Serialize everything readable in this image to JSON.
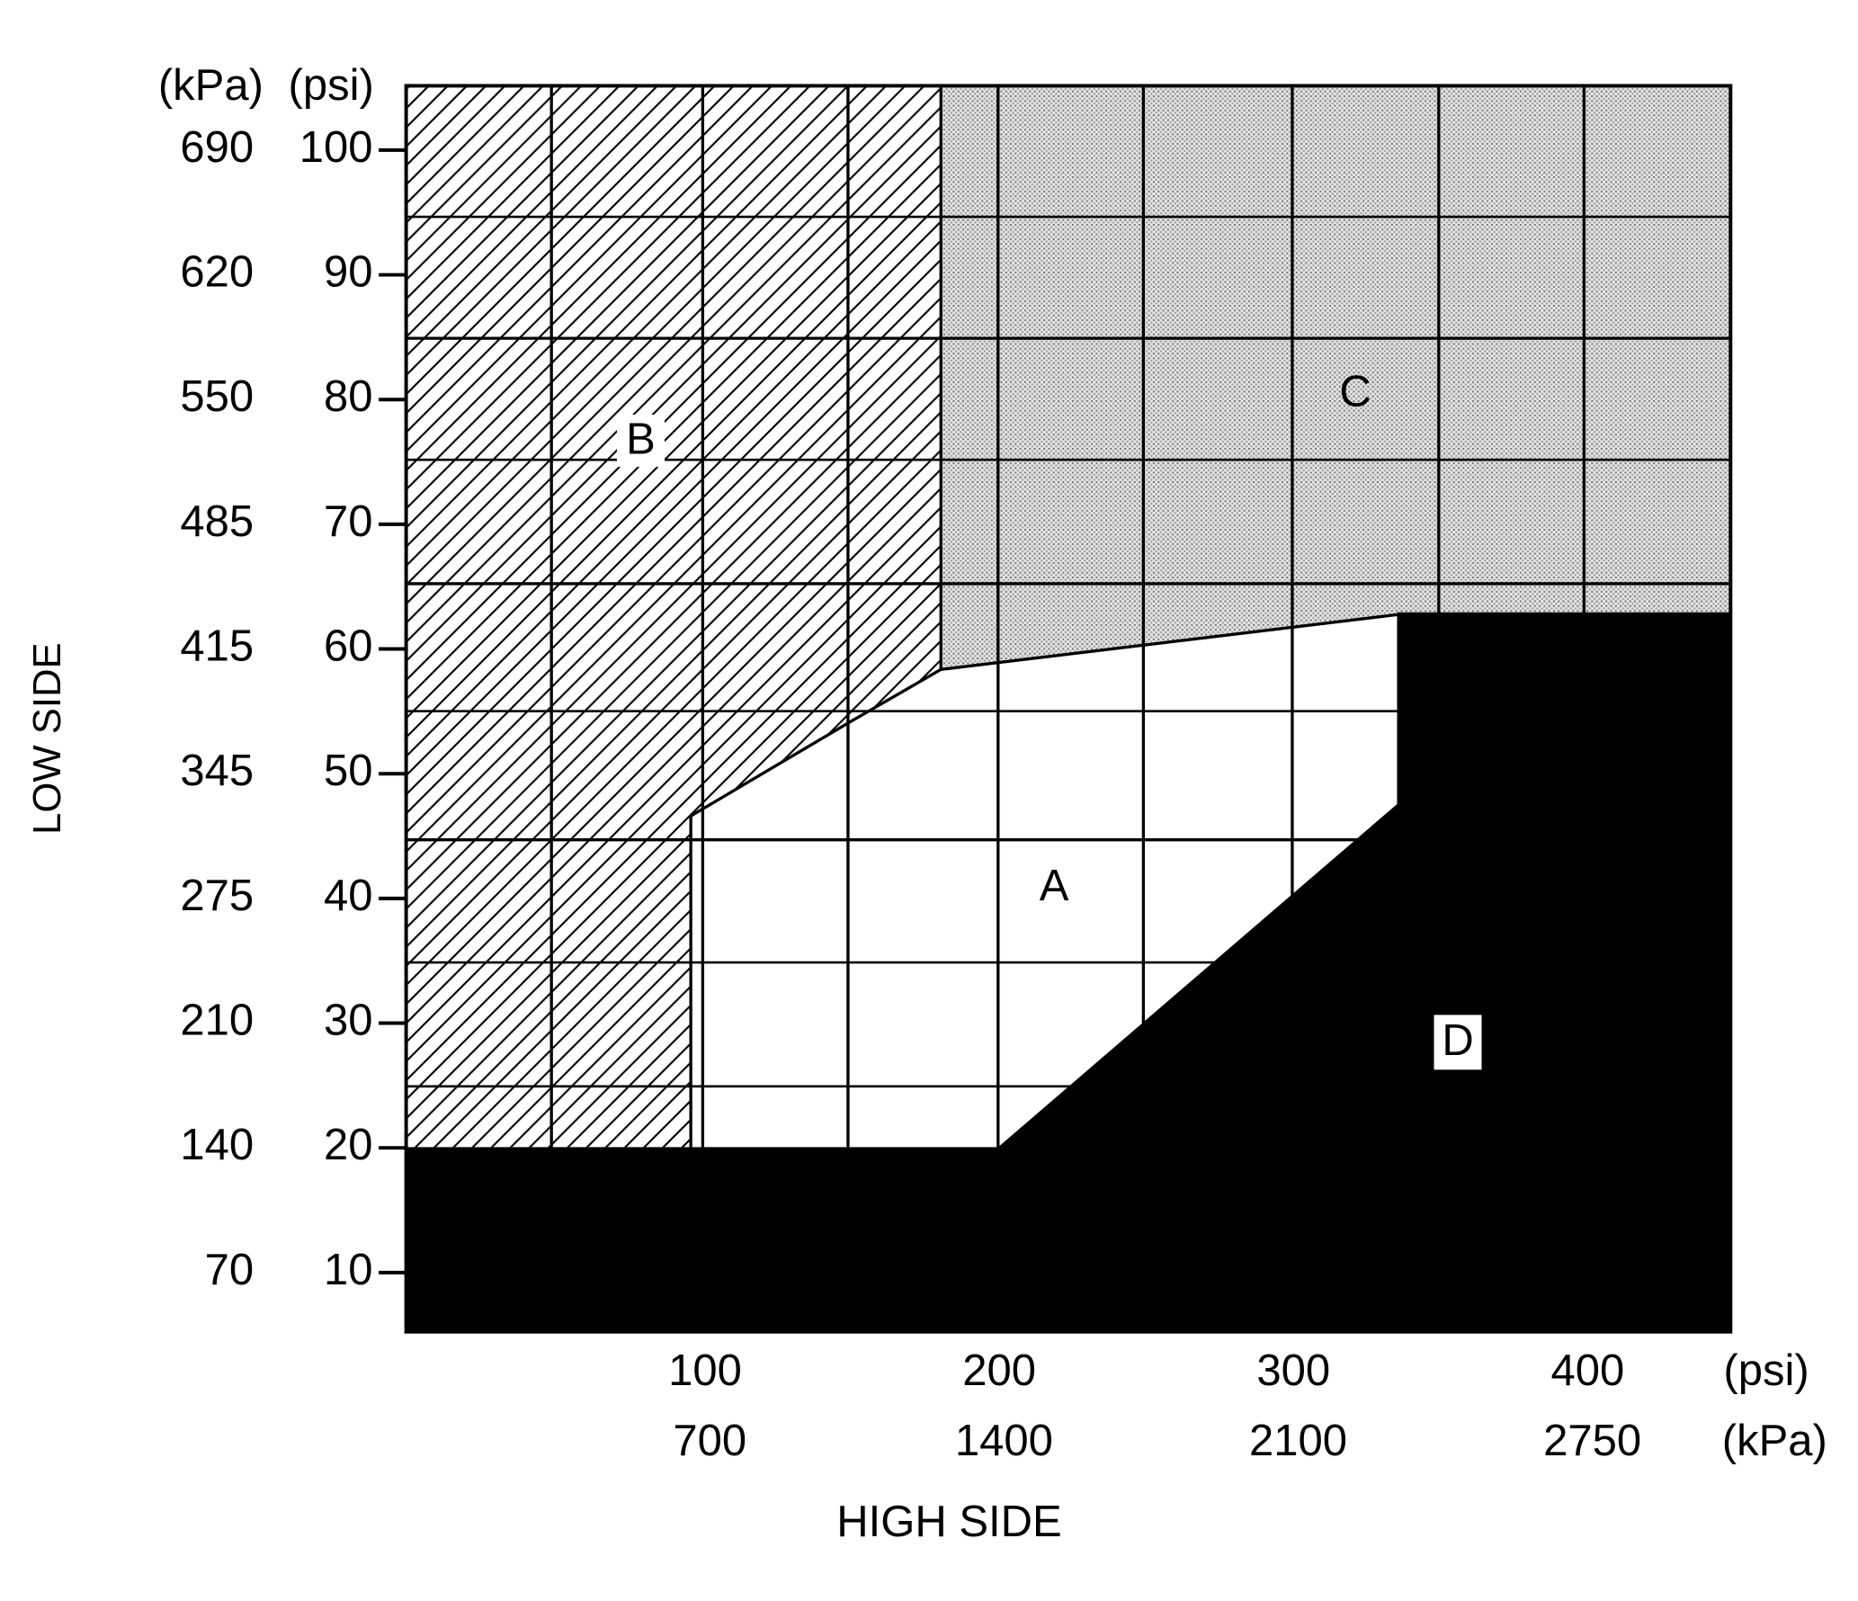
{
  "y_axis": {
    "title": "LOW SIDE",
    "units": [
      "(kPa)",
      "(psi)"
    ],
    "kpa": [
      "690",
      "620",
      "550",
      "485",
      "415",
      "345",
      "275",
      "210",
      "140",
      "70"
    ],
    "psi": [
      "100",
      "90",
      "80",
      "70",
      "60",
      "50",
      "40",
      "30",
      "20",
      "10"
    ]
  },
  "x_axis": {
    "title": "HIGH SIDE",
    "units": [
      "(psi)",
      "(kPa)"
    ],
    "psi": [
      "100",
      "200",
      "300",
      "400"
    ],
    "kpa": [
      "700",
      "1400",
      "2100",
      "2750"
    ]
  },
  "regions": [
    "A",
    "B",
    "C",
    "D"
  ]
}
